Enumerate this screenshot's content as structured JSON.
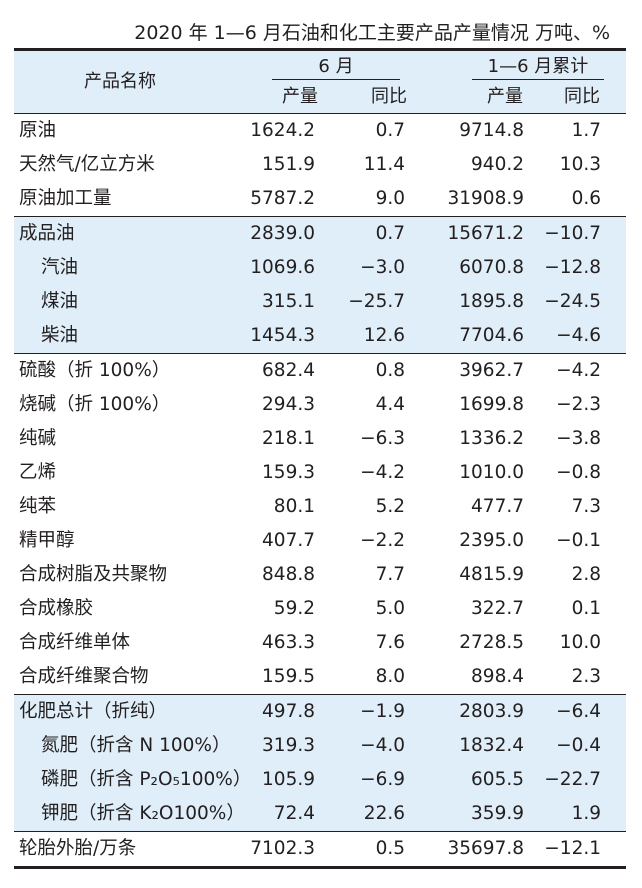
{
  "title": "2020 年 1—6 月石油和化工主要产品产量情况  万吨、%",
  "header": {
    "product_name": "产品名称",
    "group_june": "6 月",
    "group_ytd": "1—6 月累计",
    "output": "产量",
    "yoy": "同比"
  },
  "rows": [
    {
      "name": "原油",
      "june_output": "1624.2",
      "june_yoy": "0.7",
      "ytd_output": "9714.8",
      "ytd_yoy": "1.7"
    },
    {
      "name": "天然气/亿立方米",
      "june_output": "151.9",
      "june_yoy": "11.4",
      "ytd_output": "940.2",
      "ytd_yoy": "10.3"
    },
    {
      "name": "原油加工量",
      "june_output": "5787.2",
      "june_yoy": "9.0",
      "ytd_output": "31908.9",
      "ytd_yoy": "0.6"
    },
    {
      "name": "成品油",
      "june_output": "2839.0",
      "june_yoy": "0.7",
      "ytd_output": "15671.2",
      "ytd_yoy": "−10.7"
    },
    {
      "name": "汽油",
      "june_output": "1069.6",
      "june_yoy": "−3.0",
      "ytd_output": "6070.8",
      "ytd_yoy": "−12.8"
    },
    {
      "name": "煤油",
      "june_output": "315.1",
      "june_yoy": "−25.7",
      "ytd_output": "1895.8",
      "ytd_yoy": "−24.5"
    },
    {
      "name": "柴油",
      "june_output": "1454.3",
      "june_yoy": "12.6",
      "ytd_output": "7704.6",
      "ytd_yoy": "−4.6"
    },
    {
      "name": "硫酸（折 100%）",
      "june_output": "682.4",
      "june_yoy": "0.8",
      "ytd_output": "3962.7",
      "ytd_yoy": "−4.2"
    },
    {
      "name": "烧碱（折 100%）",
      "june_output": "294.3",
      "june_yoy": "4.4",
      "ytd_output": "1699.8",
      "ytd_yoy": "−2.3"
    },
    {
      "name": "纯碱",
      "june_output": "218.1",
      "june_yoy": "−6.3",
      "ytd_output": "1336.2",
      "ytd_yoy": "−3.8"
    },
    {
      "name": "乙烯",
      "june_output": "159.3",
      "june_yoy": "−4.2",
      "ytd_output": "1010.0",
      "ytd_yoy": "−0.8"
    },
    {
      "name": "纯苯",
      "june_output": "80.1",
      "june_yoy": "5.2",
      "ytd_output": "477.7",
      "ytd_yoy": "7.3"
    },
    {
      "name": "精甲醇",
      "june_output": "407.7",
      "june_yoy": "−2.2",
      "ytd_output": "2395.0",
      "ytd_yoy": "−0.1"
    },
    {
      "name": "合成树脂及共聚物",
      "june_output": "848.8",
      "june_yoy": "7.7",
      "ytd_output": "4815.9",
      "ytd_yoy": "2.8"
    },
    {
      "name": "合成橡胶",
      "june_output": "59.2",
      "june_yoy": "5.0",
      "ytd_output": "322.7",
      "ytd_yoy": "0.1"
    },
    {
      "name": "合成纤维单体",
      "june_output": "463.3",
      "june_yoy": "7.6",
      "ytd_output": "2728.5",
      "ytd_yoy": "10.0"
    },
    {
      "name": "合成纤维聚合物",
      "june_output": "159.5",
      "june_yoy": "8.0",
      "ytd_output": "898.4",
      "ytd_yoy": "2.3"
    },
    {
      "name": "化肥总计（折纯）",
      "june_output": "497.8",
      "june_yoy": "−1.9",
      "ytd_output": "2803.9",
      "ytd_yoy": "−6.4"
    },
    {
      "name": "氮肥（折含 N 100%）",
      "june_output": "319.3",
      "june_yoy": "−4.0",
      "ytd_output": "1832.4",
      "ytd_yoy": "−0.4"
    },
    {
      "name": "磷肥（折含 P₂O₅100%）",
      "june_output": "105.9",
      "june_yoy": "−6.9",
      "ytd_output": "605.5",
      "ytd_yoy": "−22.7"
    },
    {
      "name": "钾肥（折含 K₂O100%）",
      "june_output": "72.4",
      "june_yoy": "22.6",
      "ytd_output": "359.9",
      "ytd_yoy": "1.9"
    },
    {
      "name": "轮胎外胎/万条",
      "june_output": "7102.3",
      "june_yoy": "0.5",
      "ytd_output": "35697.8",
      "ytd_yoy": "−12.1"
    }
  ]
}
